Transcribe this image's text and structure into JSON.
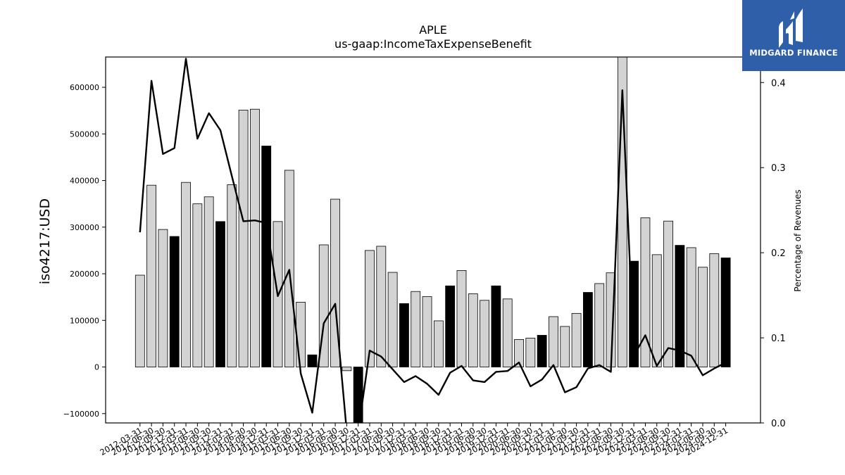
{
  "chart_data": {
    "type": "bar",
    "title": "APLE",
    "subtitle": "us-gaap:IncomeTaxExpenseBenefit",
    "ylabel": "iso4217:USD",
    "y2label": "Percentage of Revenues",
    "ylim": [
      -120000,
      665000
    ],
    "y2lim": [
      0.0,
      0.43
    ],
    "yticks": [
      -100000,
      0,
      100000,
      200000,
      300000,
      400000,
      500000,
      600000
    ],
    "y2ticks": [
      0.0,
      0.1,
      0.2,
      0.3,
      0.4
    ],
    "categories": [
      "2012-03-31",
      "2012-06-30",
      "2012-09-30",
      "2012-12-31",
      "2013-03-31",
      "2013-06-30",
      "2013-09-30",
      "2013-12-31",
      "2014-03-31",
      "2014-06-30",
      "2014-09-30",
      "2014-12-31",
      "2015-03-31",
      "2015-06-30",
      "2015-09-30",
      "2015-12-31",
      "2016-03-31",
      "2016-06-30",
      "2016-09-30",
      "2016-12-31",
      "2017-03-31",
      "2017-06-30",
      "2017-09-30",
      "2017-12-31",
      "2018-03-31",
      "2018-06-30",
      "2018-09-30",
      "2018-12-31",
      "2019-03-31",
      "2019-06-30",
      "2019-09-30",
      "2019-12-31",
      "2020-03-31",
      "2020-06-30",
      "2020-09-30",
      "2020-12-31",
      "2021-03-31",
      "2021-06-30",
      "2021-09-30",
      "2021-12-31",
      "2022-03-31",
      "2022-06-30",
      "2022-09-30",
      "2022-12-31",
      "2023-03-31",
      "2023-06-30",
      "2023-09-30",
      "2023-12-31",
      "2024-03-31",
      "2024-06-30",
      "2024-09-30",
      "2024-12-31"
    ],
    "xtick_labels": [
      "2012-03-31",
      "2012-06-30",
      "2012-09-30",
      "2012-12-31",
      "2013-03-31",
      "2013-06-30",
      "2013-09-30",
      "2013-12-31",
      "2014-03-31",
      "2014-06-30",
      "2014-09-30",
      "2014-12-31",
      "2015-03-31",
      "2015-06-30",
      "2015-09-30",
      "2015-12-31",
      "2016-03-31",
      "2016-06-30",
      "2016-09-30",
      "2016-12-31",
      "2017-03-31",
      "2017-06-30",
      "2017-09-30",
      "2017-12-31",
      "2018-03-31",
      "2018-06-30",
      "2018-09-30",
      "2018-12-31",
      "2019-03-31",
      "2019-06-30",
      "2019-09-30",
      "2019-12-31",
      "2020-03-31",
      "2020-06-30",
      "2020-09-30",
      "2020-12-31",
      "2021-03-31",
      "2021-06-30",
      "2021-09-30",
      "2021-12-31",
      "2022-03-31",
      "2022-06-30",
      "2022-09-30",
      "2022-12-31",
      "2023-03-31",
      "2023-06-30",
      "2023-09-30",
      "2023-12-31",
      "2024-03-31",
      "2024-06-30",
      "2024-09-30",
      "2024-12-31"
    ],
    "series": [
      {
        "values": [
          197000,
          390000,
          295000,
          280000,
          396000,
          350000,
          365000,
          312000,
          391000,
          551000,
          553000,
          474000,
          312000,
          422000,
          139000,
          26000,
          262000,
          360000,
          -8000,
          -120000,
          250000,
          259000,
          203000,
          136000,
          162000,
          151000,
          99000,
          174000,
          207000,
          157000,
          143000,
          174000,
          146000,
          59000,
          62000,
          68000,
          108000,
          87000,
          115000,
          160000,
          179000,
          202000,
          665000,
          227000,
          320000,
          241000,
          313000,
          261000,
          256000,
          214000,
          243000,
          234000
        ]
      },
      {
        "values": [
          0.224,
          0.402,
          0.316,
          0.323,
          0.428,
          0.334,
          0.364,
          0.344,
          0.29,
          0.237,
          0.238,
          0.235,
          0.149,
          0.18,
          0.058,
          0.012,
          0.117,
          0.14,
          -0.01,
          -0.01,
          0.085,
          0.078,
          0.063,
          0.048,
          0.055,
          0.046,
          0.033,
          0.059,
          0.067,
          0.05,
          0.048,
          0.06,
          0.061,
          0.071,
          0.043,
          0.051,
          0.068,
          0.036,
          0.042,
          0.064,
          0.068,
          0.06,
          0.391,
          0.079,
          0.103,
          0.067,
          0.088,
          0.085,
          0.079,
          0.056,
          0.064,
          0.071
        ]
      }
    ],
    "grid": false,
    "legend": "none",
    "colors": {
      "bar_default": "#d3d3d3",
      "bar_highlight": "#000000",
      "bar_edge": "#000000",
      "line": "#000000"
    }
  },
  "logo": {
    "text": "MIDGARD FINANCE",
    "bg": "#2f5fa8"
  }
}
